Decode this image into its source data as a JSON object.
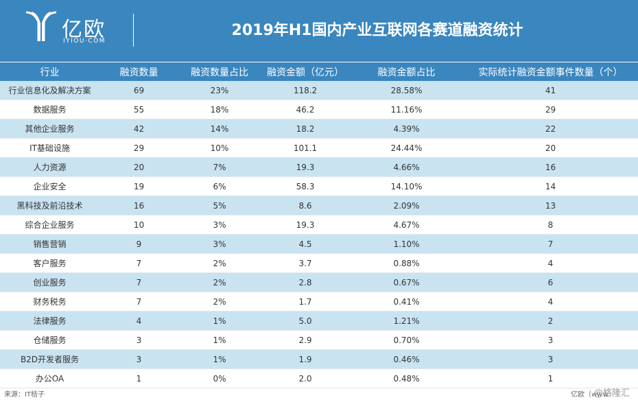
{
  "header": {
    "logo_text": "亿欧",
    "logo_sub": "IYIOU·COM",
    "title": "2019年H1国内产业互联网各赛道融资统计"
  },
  "table": {
    "columns": [
      "行业",
      "融资数量",
      "融资数量占比",
      "融资金额（亿元）",
      "融资金额占比",
      "实际统计融资金额事件数量（个）"
    ],
    "rows": [
      [
        "行业信息化及解决方案",
        "69",
        "23%",
        "118.2",
        "28.58%",
        "41"
      ],
      [
        "数据服务",
        "55",
        "18%",
        "46.2",
        "11.16%",
        "29"
      ],
      [
        "其他企业服务",
        "42",
        "14%",
        "18.2",
        "4.39%",
        "22"
      ],
      [
        "IT基础设施",
        "29",
        "10%",
        "101.1",
        "24.44%",
        "20"
      ],
      [
        "人力资源",
        "20",
        "7%",
        "19.3",
        "4.66%",
        "16"
      ],
      [
        "企业安全",
        "19",
        "6%",
        "58.3",
        "14.10%",
        "14"
      ],
      [
        "黑科技及前沿技术",
        "16",
        "5%",
        "8.6",
        "2.09%",
        "13"
      ],
      [
        "综合企业服务",
        "10",
        "3%",
        "19.3",
        "4.67%",
        "8"
      ],
      [
        "销售营销",
        "9",
        "3%",
        "4.5",
        "1.10%",
        "7"
      ],
      [
        "客户服务",
        "7",
        "2%",
        "3.7",
        "0.88%",
        "4"
      ],
      [
        "创业服务",
        "7",
        "2%",
        "2.8",
        "0.67%",
        "6"
      ],
      [
        "财务税务",
        "7",
        "2%",
        "1.7",
        "0.41%",
        "4"
      ],
      [
        "法律服务",
        "4",
        "1%",
        "5.0",
        "1.21%",
        "2"
      ],
      [
        "仓储服务",
        "3",
        "1%",
        "2.9",
        "0.70%",
        "3"
      ],
      [
        "B2D开发者服务",
        "3",
        "1%",
        "1.9",
        "0.46%",
        "3"
      ],
      [
        "办公OA",
        "1",
        "0%",
        "2.0",
        "0.48%",
        "1"
      ]
    ]
  },
  "footer": {
    "source": "来源：IT桔子",
    "brand": "亿欧（www.",
    "watermark": "@格隆汇"
  },
  "colors": {
    "header_blue": "#3a86bf",
    "stripe_blue": "#c9e3f1"
  }
}
